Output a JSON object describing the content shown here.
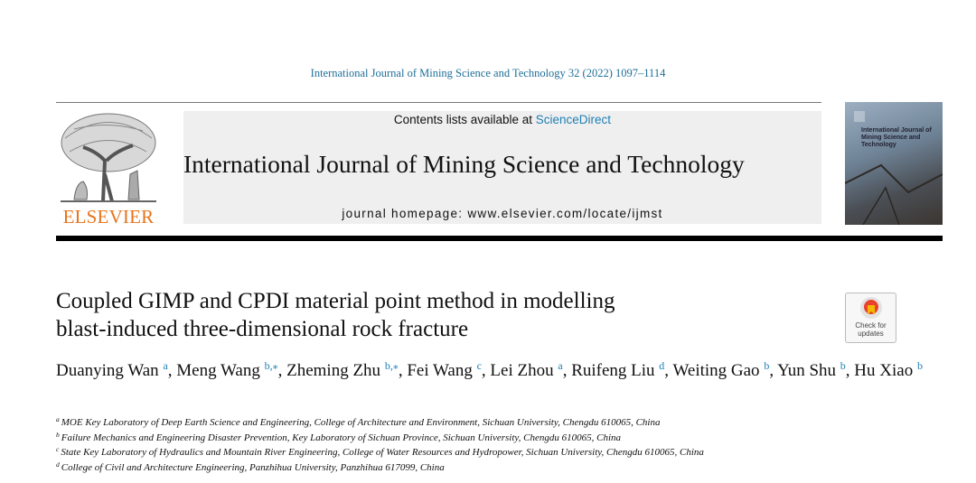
{
  "citation": "International Journal of Mining Science and Technology 32 (2022) 1097–1114",
  "header": {
    "contents_prefix": "Contents lists available at",
    "contents_link": "ScienceDirect",
    "journal_title": "International Journal of Mining Science and Technology",
    "homepage": "journal homepage: www.elsevier.com/locate/ijmst",
    "publisher": "ELSEVIER",
    "cover_title": "International Journal of Mining Science and Technology"
  },
  "badge": {
    "line1": "Check for",
    "line2": "updates"
  },
  "article": {
    "title_lines": [
      "Coupled GIMP and CPDI material point method in modelling",
      "blast-induced three-dimensional rock fracture"
    ],
    "authors": [
      {
        "name": "Duanying Wan",
        "affiliation": "a",
        "separator": ","
      },
      {
        "name": "Meng Wang",
        "affiliation": "b,⁎",
        "separator": ","
      },
      {
        "name": "Zheming Zhu",
        "affiliation": "b,⁎",
        "separator": ","
      },
      {
        "name": "Fei Wang",
        "affiliation": "c",
        "separator": ","
      },
      {
        "name": "Lei Zhou",
        "affiliation": "a",
        "separator": ","
      },
      {
        "name": "Ruifeng Liu",
        "affiliation": "d",
        "separator": ","
      },
      {
        "name": "Weiting Gao",
        "affiliation": "b",
        "separator": ","
      },
      {
        "name": "Yun Shu",
        "affiliation": "b",
        "separator": ","
      },
      {
        "name": "Hu Xiao",
        "affiliation": "b"
      }
    ],
    "affiliations": [
      {
        "letter": "a",
        "text": "MOE Key Laboratory of Deep Earth Science and Engineering, College of Architecture and Environment, Sichuan University, Chengdu 610065, China"
      },
      {
        "letter": "b",
        "text": "Failure Mechanics and Engineering Disaster Prevention, Key Laboratory of Sichuan Province, Sichuan University, Chengdu 610065, China"
      },
      {
        "letter": "c",
        "text": "State Key Laboratory of Hydraulics and Mountain River Engineering, College of Water Resources and Hydropower, Sichuan University, Chengdu 610065, China"
      },
      {
        "letter": "d",
        "text": "College of Civil and Architecture Engineering, Panzhihua University, Panzhihua 617099, China"
      }
    ]
  }
}
